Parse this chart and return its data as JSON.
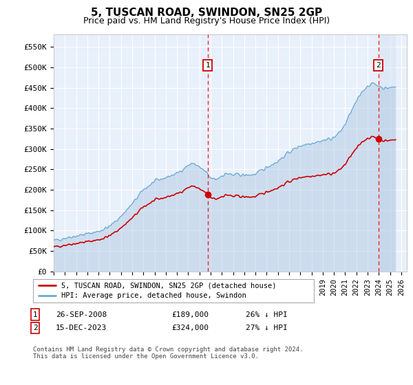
{
  "title": "5, TUSCAN ROAD, SWINDON, SN25 2GP",
  "subtitle": "Price paid vs. HM Land Registry's House Price Index (HPI)",
  "ylabel_ticks": [
    "£0",
    "£50K",
    "£100K",
    "£150K",
    "£200K",
    "£250K",
    "£300K",
    "£350K",
    "£400K",
    "£450K",
    "£500K",
    "£550K"
  ],
  "ytick_values": [
    0,
    50000,
    100000,
    150000,
    200000,
    250000,
    300000,
    350000,
    400000,
    450000,
    500000,
    550000
  ],
  "ylim": [
    0,
    580000
  ],
  "xlim_start": 1995.0,
  "xlim_end": 2026.5,
  "marker1_x": 2008.74,
  "marker1_y": 189000,
  "marker2_x": 2023.96,
  "marker2_y": 324000,
  "marker1_date": "26-SEP-2008",
  "marker1_price": "£189,000",
  "marker1_hpi": "26% ↓ HPI",
  "marker2_date": "15-DEC-2023",
  "marker2_price": "£324,000",
  "marker2_hpi": "27% ↓ HPI",
  "legend_line1": "5, TUSCAN ROAD, SWINDON, SN25 2GP (detached house)",
  "legend_line2": "HPI: Average price, detached house, Swindon",
  "footnote": "Contains HM Land Registry data © Crown copyright and database right 2024.\nThis data is licensed under the Open Government Licence v3.0.",
  "hpi_color": "#aac4e0",
  "price_color": "#cc0000",
  "plot_bg": "#e8f0fb",
  "hpi_line_color": "#6aaad4"
}
